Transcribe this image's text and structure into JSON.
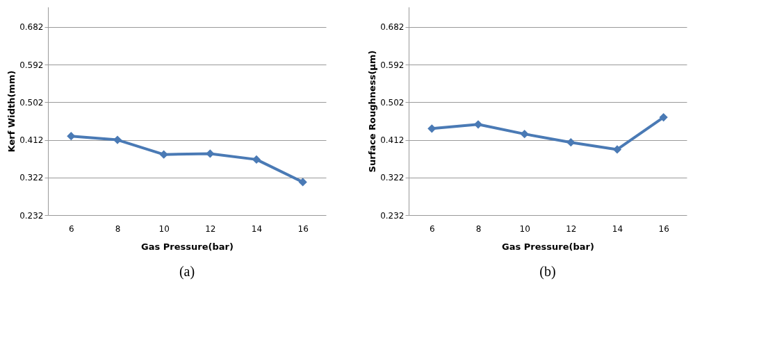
{
  "chart_data": [
    {
      "type": "line",
      "categories": [
        "6",
        "8",
        "10",
        "12",
        "14",
        "16"
      ],
      "xlabel": "Gas Pressure(bar)",
      "ylabel": "Kerf Width(mm)",
      "series": [
        {
          "color": "#4a7ab5",
          "values": [
            0.421,
            0.412,
            0.377,
            0.379,
            0.365,
            0.311
          ]
        }
      ],
      "ylim": [
        0.232,
        0.73
      ],
      "yticks": [
        0.232,
        0.322,
        0.412,
        0.502,
        0.592,
        0.682
      ],
      "grid": "y",
      "marker": "diamond",
      "line_style": "solid",
      "annotations": [
        "(a)"
      ]
    },
    {
      "type": "line",
      "categories": [
        "6",
        "8",
        "10",
        "12",
        "14",
        "16"
      ],
      "xlabel": "Gas Pressure(bar)",
      "ylabel": "Surface Roughness(µm)",
      "series": [
        {
          "color": "#4a7ab5",
          "values": [
            0.439,
            0.449,
            0.426,
            0.406,
            0.389,
            0.466
          ]
        }
      ],
      "ylim": [
        0.232,
        0.73
      ],
      "yticks": [
        0.232,
        0.322,
        0.412,
        0.502,
        0.592,
        0.682
      ],
      "grid": "y",
      "marker": "diamond",
      "line_style": "solid",
      "annotations": [
        "(b)"
      ]
    }
  ]
}
